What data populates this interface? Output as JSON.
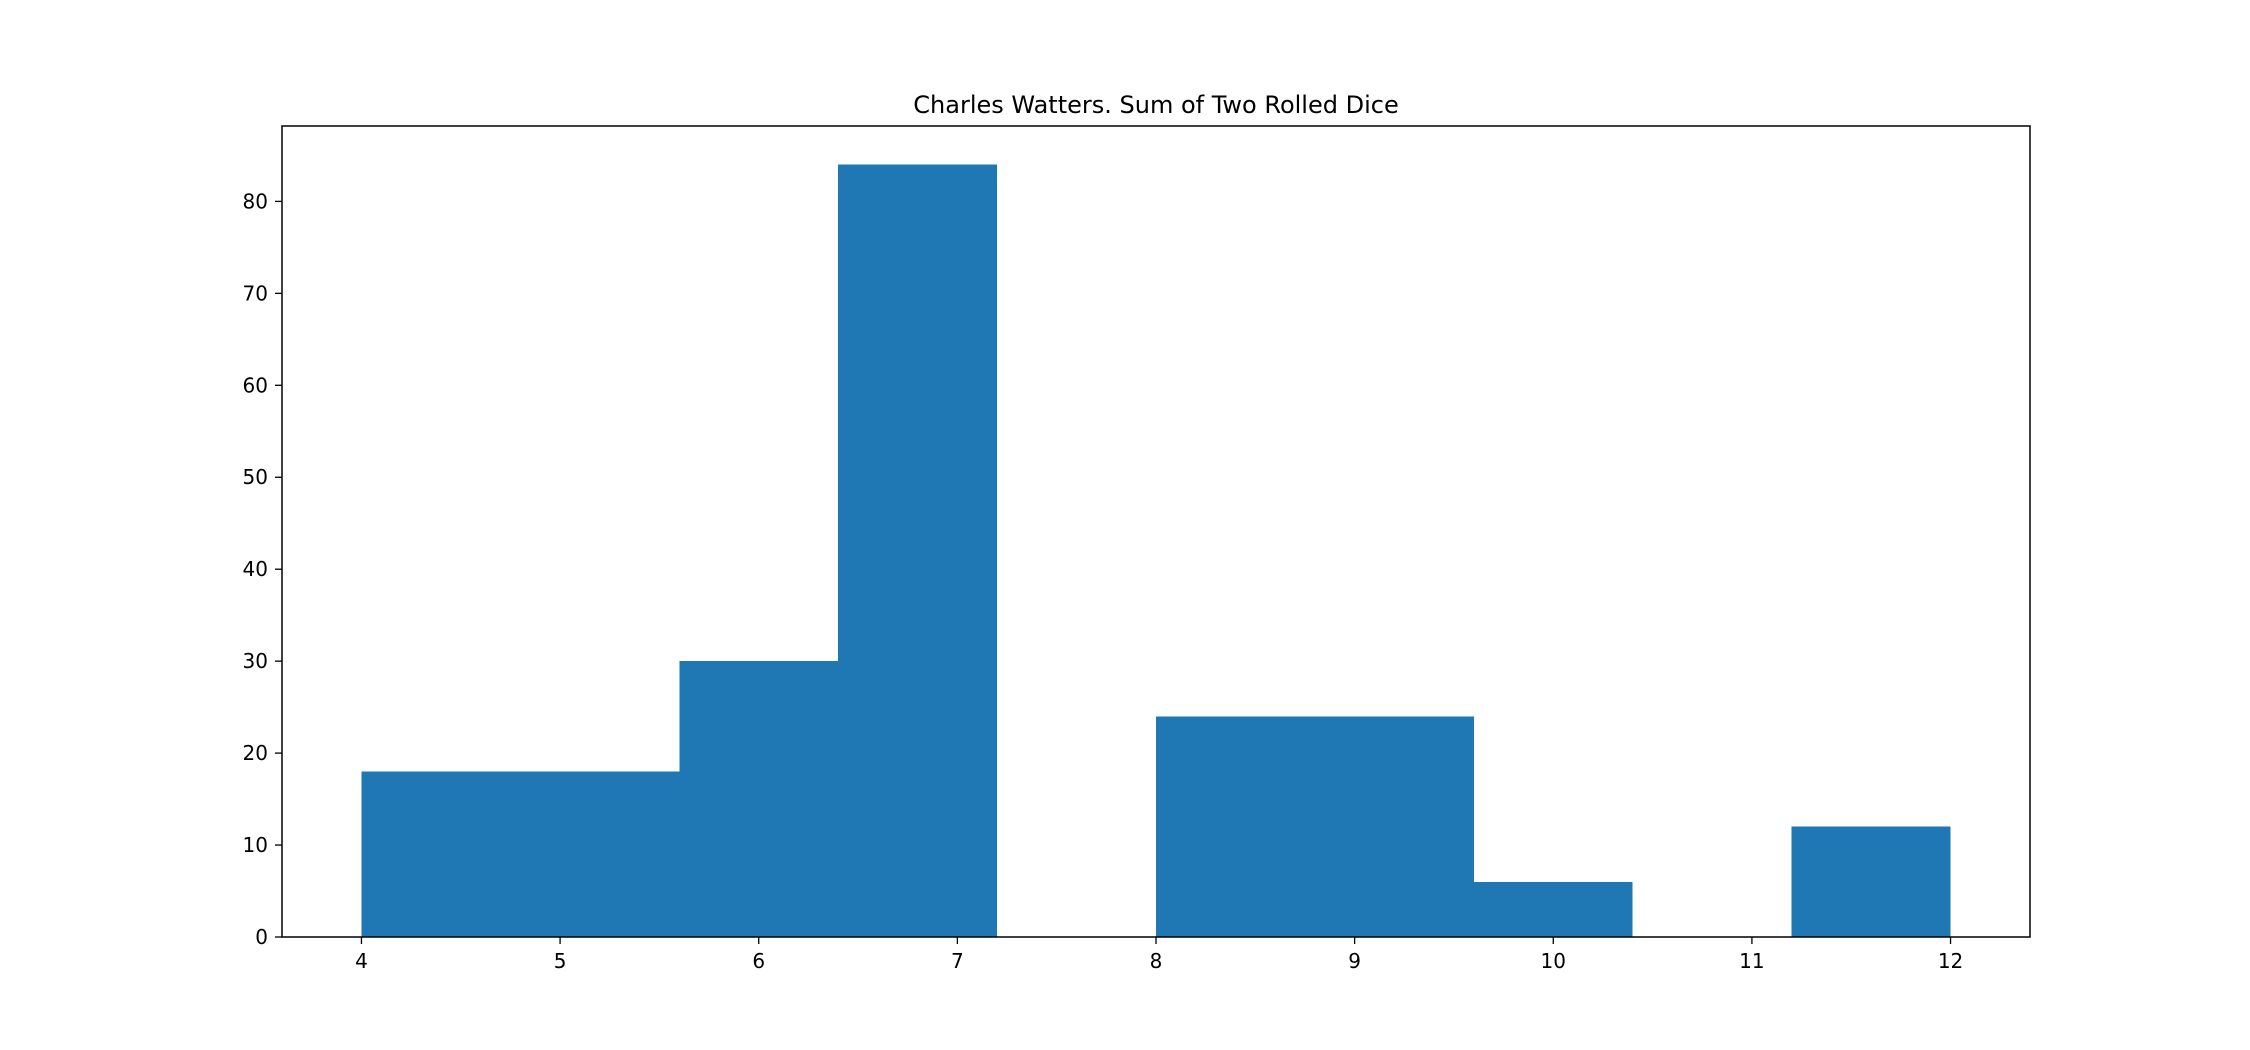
{
  "chart_data": {
    "type": "bar",
    "title": "Charles Watters. Sum of Two Rolled Dice",
    "xlabel": "",
    "ylabel": "",
    "bins": [
      {
        "x0": 4.0,
        "x1": 4.8,
        "count": 18
      },
      {
        "x0": 4.8,
        "x1": 5.6,
        "count": 18
      },
      {
        "x0": 5.6,
        "x1": 6.4,
        "count": 30
      },
      {
        "x0": 6.4,
        "x1": 7.2,
        "count": 84
      },
      {
        "x0": 7.2,
        "x1": 8.0,
        "count": 0
      },
      {
        "x0": 8.0,
        "x1": 8.8,
        "count": 24
      },
      {
        "x0": 8.8,
        "x1": 9.6,
        "count": 24
      },
      {
        "x0": 9.6,
        "x1": 10.4,
        "count": 6
      },
      {
        "x0": 10.4,
        "x1": 11.2,
        "count": 0
      },
      {
        "x0": 11.2,
        "x1": 12.0,
        "count": 12
      }
    ],
    "xlim": [
      3.6,
      12.4
    ],
    "ylim": [
      0,
      88.2
    ],
    "xticks": [
      "4",
      "5",
      "6",
      "7",
      "8",
      "9",
      "10",
      "11",
      "12"
    ],
    "yticks": [
      "0",
      "10",
      "20",
      "30",
      "40",
      "50",
      "60",
      "70",
      "80"
    ],
    "grid": false,
    "legend": "none",
    "bar_color": "#1f77b4"
  }
}
